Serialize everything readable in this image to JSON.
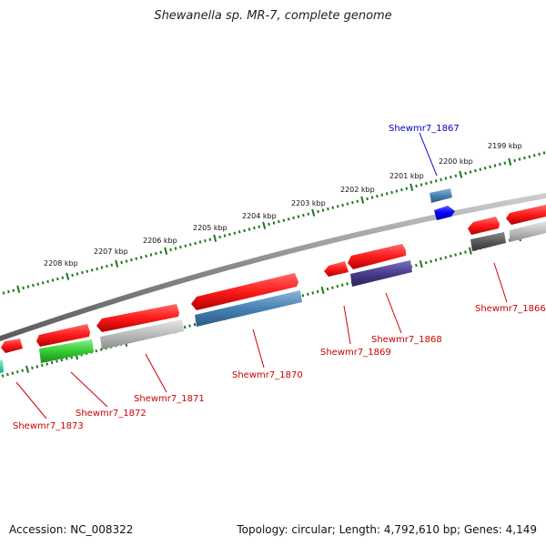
{
  "title": "Shewanella sp. MR-7, complete genome",
  "accession": "Accession: NC_008322",
  "stats": "Topology: circular; Length: 4,792,610 bp; Genes: 4,149",
  "colors": {
    "tick": "#1a7a1a",
    "backbone": "#8a8a8a",
    "gene_red": "#ff1a1a",
    "gene_steel": "#4682b4",
    "gene_grey": "#b8b8b8",
    "gene_darkgrey": "#5a5a5a",
    "gene_green": "#33cc33",
    "gene_slate": "#483d8b",
    "gene_blue": "#0000ff",
    "gene_teal": "#20d0a0",
    "label_red": "#cc0000",
    "label_blue": "#0000cc"
  },
  "ticks": [
    "2199 kbp",
    "2200 kbp",
    "2201 kbp",
    "2202 kbp",
    "2203 kbp",
    "2204 kbp",
    "2205 kbp",
    "2206 kbp",
    "2207 kbp",
    "2208 kbp"
  ],
  "gene_labels": [
    {
      "text": "Shewmr7_1867",
      "color": "blue"
    },
    {
      "text": "Shewmr7_1866",
      "color": "red"
    },
    {
      "text": "Shewmr7_1868",
      "color": "red"
    },
    {
      "text": "Shewmr7_1869",
      "color": "red"
    },
    {
      "text": "Shewmr7_1870",
      "color": "red"
    },
    {
      "text": "Shewmr7_1871",
      "color": "red"
    },
    {
      "text": "Shewmr7_1872",
      "color": "red"
    },
    {
      "text": "Shewmr7_1873",
      "color": "red"
    }
  ]
}
